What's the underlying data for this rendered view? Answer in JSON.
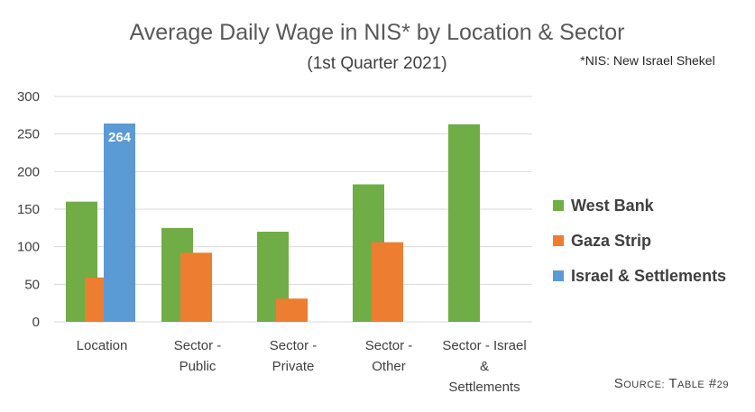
{
  "chart_data": {
    "type": "bar",
    "title": "Average Daily Wage in NIS* by Location & Sector",
    "subtitle": "(1st Quarter 2021)",
    "footnote": "*NIS: New Israel Shekel",
    "source": "Source: Table #29",
    "categories": [
      [
        "Location"
      ],
      [
        "Sector -",
        "Public"
      ],
      [
        "Sector -",
        "Private"
      ],
      [
        "Sector -",
        "Other"
      ],
      [
        "Sector - Israel",
        "&",
        "Settlements"
      ]
    ],
    "series": [
      {
        "name": "West Bank",
        "color": "#70ad47",
        "values": [
          160,
          125,
          120,
          183,
          263
        ]
      },
      {
        "name": "Gaza Strip",
        "color": "#ed7d31",
        "values": [
          59,
          92,
          31,
          106,
          null
        ]
      },
      {
        "name": "Israel & Settlements",
        "color": "#5b9bd5",
        "values": [
          264,
          null,
          null,
          null,
          null
        ]
      }
    ],
    "data_labels": [
      {
        "series": 2,
        "category": 0,
        "text": "264"
      }
    ],
    "ylim": [
      0,
      300
    ],
    "yticks": [
      0,
      50,
      100,
      150,
      200,
      250,
      300
    ],
    "grid": true,
    "legend_position": "right"
  }
}
